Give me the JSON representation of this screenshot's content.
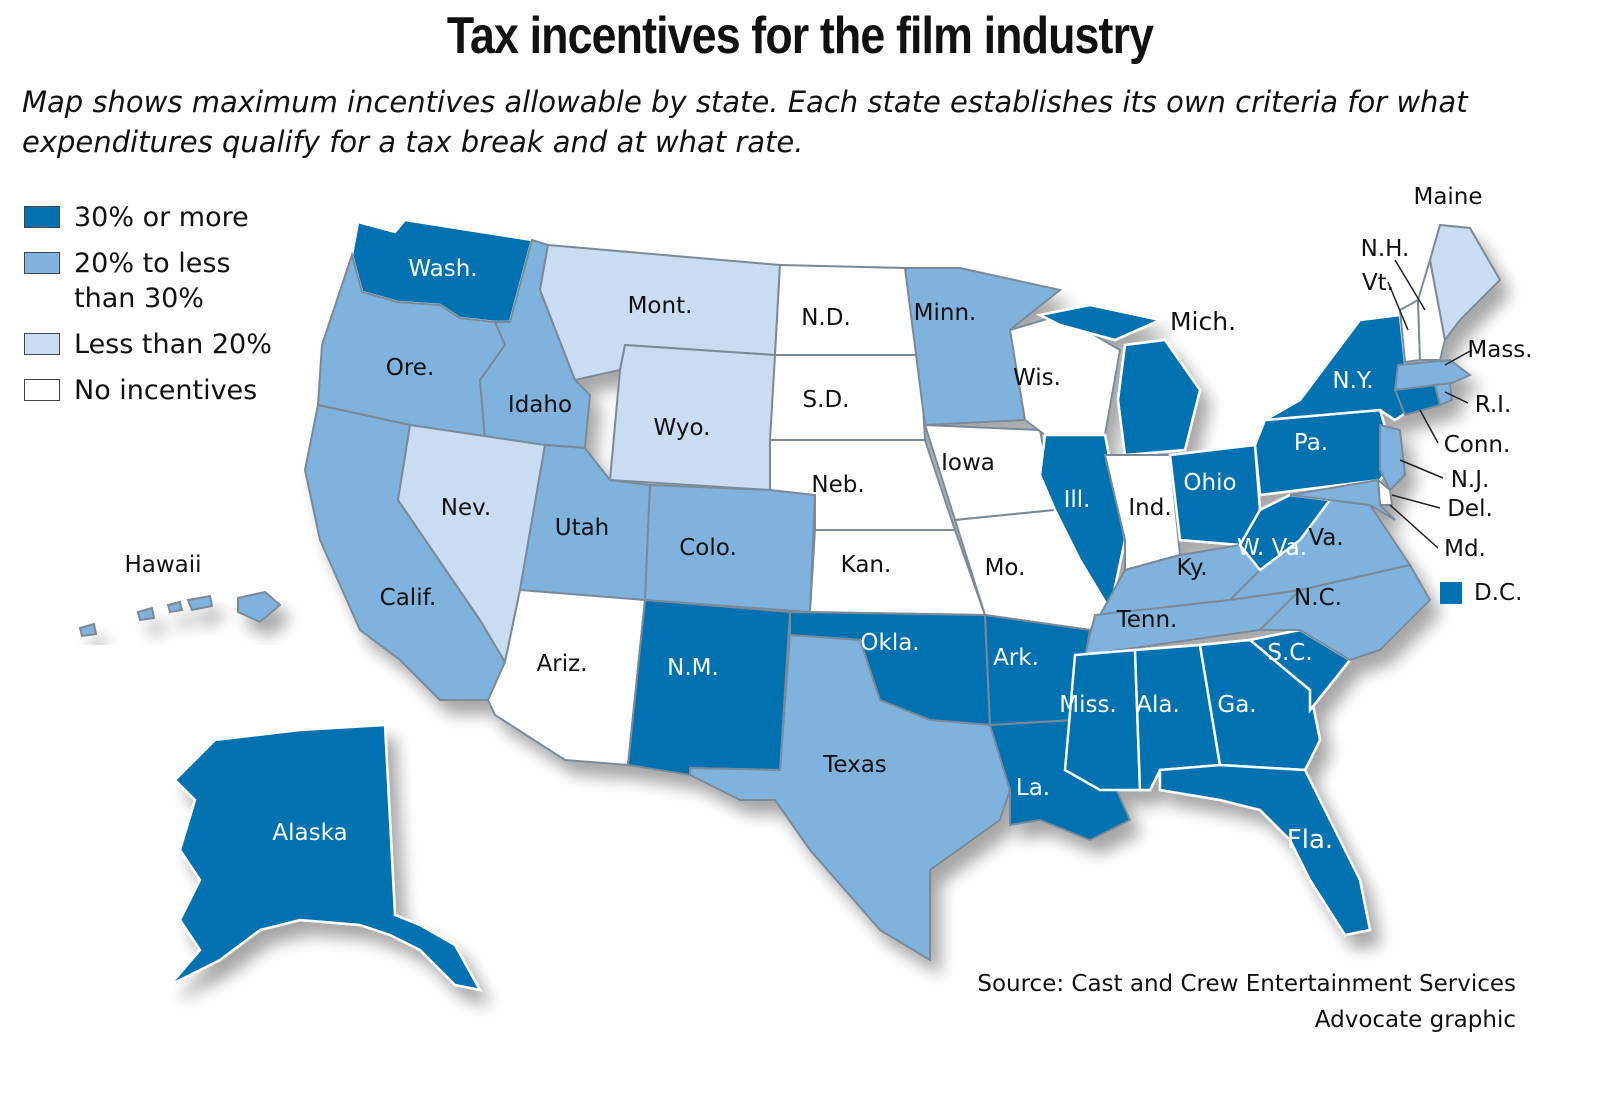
{
  "title": "Tax incentives for the film industry",
  "subtitle": "Map shows maximum incentives allowable by state. Each state establishes its own criteria for what expenditures qualify for a tax break and at what rate.",
  "legend": [
    {
      "label": "30% or more",
      "color": "#0072b2"
    },
    {
      "label": "20% to less than 30%",
      "color": "#7fb2dc"
    },
    {
      "label": "Less than 20%",
      "color": "#c9dcf1"
    },
    {
      "label": "No incentives",
      "color": "#ffffff"
    }
  ],
  "categories": {
    "high": "#0072b2",
    "mid": "#7fb2dc",
    "low": "#c9dcf1",
    "none": "#ffffff"
  },
  "states": {
    "wash": {
      "label": "Wash.",
      "category": "high"
    },
    "ore": {
      "label": "Ore.",
      "category": "mid"
    },
    "calif": {
      "label": "Calif.",
      "category": "mid"
    },
    "idaho": {
      "label": "Idaho",
      "category": "mid"
    },
    "nev": {
      "label": "Nev.",
      "category": "low"
    },
    "mont": {
      "label": "Mont.",
      "category": "low"
    },
    "wyo": {
      "label": "Wyo.",
      "category": "low"
    },
    "utah": {
      "label": "Utah",
      "category": "mid"
    },
    "colo": {
      "label": "Colo.",
      "category": "mid"
    },
    "ariz": {
      "label": "Ariz.",
      "category": "none"
    },
    "nm": {
      "label": "N.M.",
      "category": "high"
    },
    "nd": {
      "label": "N.D.",
      "category": "none"
    },
    "sd": {
      "label": "S.D.",
      "category": "none"
    },
    "neb": {
      "label": "Neb.",
      "category": "none"
    },
    "kan": {
      "label": "Kan.",
      "category": "none"
    },
    "okla": {
      "label": "Okla.",
      "category": "high"
    },
    "texas": {
      "label": "Texas",
      "category": "mid"
    },
    "minn": {
      "label": "Minn.",
      "category": "mid"
    },
    "iowa": {
      "label": "Iowa",
      "category": "none"
    },
    "mo": {
      "label": "Mo.",
      "category": "none"
    },
    "ark": {
      "label": "Ark.",
      "category": "high"
    },
    "la": {
      "label": "La.",
      "category": "high"
    },
    "wis": {
      "label": "Wis.",
      "category": "none"
    },
    "ill": {
      "label": "Ill.",
      "category": "high"
    },
    "mich": {
      "label": "Mich.",
      "category": "high"
    },
    "ind": {
      "label": "Ind.",
      "category": "none"
    },
    "ohio": {
      "label": "Ohio",
      "category": "high"
    },
    "ky": {
      "label": "Ky.",
      "category": "mid"
    },
    "tenn": {
      "label": "Tenn.",
      "category": "mid"
    },
    "miss": {
      "label": "Miss.",
      "category": "high"
    },
    "ala": {
      "label": "Ala.",
      "category": "high"
    },
    "ga": {
      "label": "Ga.",
      "category": "high"
    },
    "fla": {
      "label": "Fla.",
      "category": "high"
    },
    "sc": {
      "label": "S.C.",
      "category": "high"
    },
    "nc": {
      "label": "N.C.",
      "category": "mid"
    },
    "va": {
      "label": "Va.",
      "category": "mid"
    },
    "wva": {
      "label": "W. Va.",
      "category": "high"
    },
    "pa": {
      "label": "Pa.",
      "category": "high"
    },
    "ny": {
      "label": "N.Y.",
      "category": "high"
    },
    "vt": {
      "label": "Vt.",
      "category": "none"
    },
    "nh": {
      "label": "N.H.",
      "category": "none"
    },
    "maine": {
      "label": "Maine",
      "category": "low"
    },
    "mass": {
      "label": "Mass.",
      "category": "mid"
    },
    "ri": {
      "label": "R.I.",
      "category": "mid"
    },
    "conn": {
      "label": "Conn.",
      "category": "high"
    },
    "nj": {
      "label": "N.J.",
      "category": "mid"
    },
    "del": {
      "label": "Del.",
      "category": "none"
    },
    "md": {
      "label": "Md.",
      "category": "mid"
    },
    "dc": {
      "label": "D.C.",
      "category": "high"
    },
    "alaska": {
      "label": "Alaska",
      "category": "high"
    },
    "hawaii": {
      "label": "Hawaii",
      "category": "mid"
    }
  },
  "source": "Source: Cast and Crew Entertainment Services",
  "credit": "Advocate graphic"
}
